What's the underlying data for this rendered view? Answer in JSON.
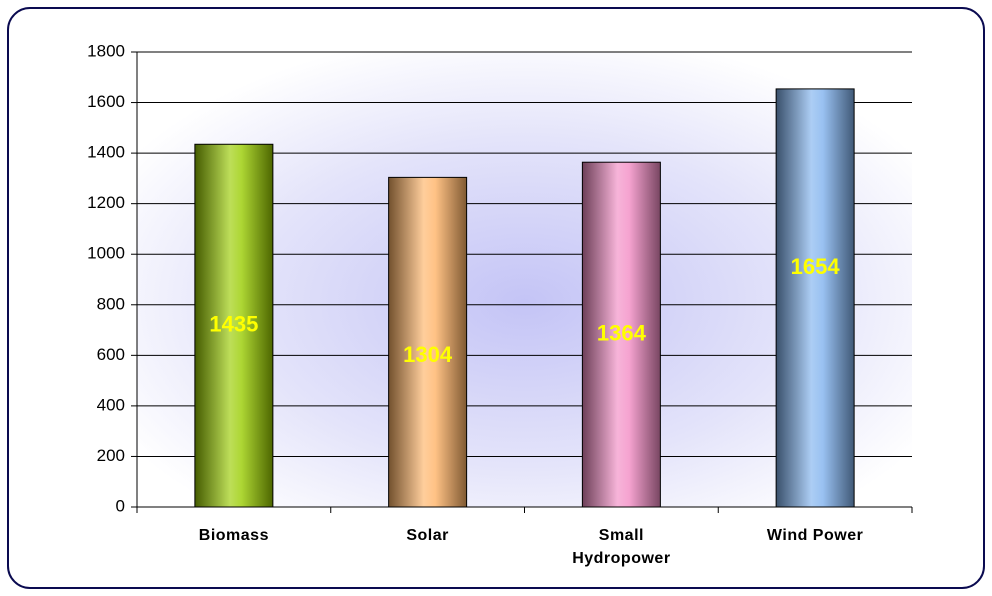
{
  "chart_data": {
    "type": "bar",
    "categories": [
      "Biomass",
      "Solar",
      "Small Hydropower",
      "Wind Power"
    ],
    "values": [
      1435,
      1304,
      1364,
      1654
    ],
    "colors": [
      "#99cc00",
      "#ffb366",
      "#f28cc4",
      "#7fb2ee"
    ],
    "ylim": [
      0,
      1800
    ],
    "yticks": [
      0,
      200,
      400,
      600,
      800,
      1000,
      1200,
      1400,
      1600,
      1800
    ],
    "grid": true
  }
}
